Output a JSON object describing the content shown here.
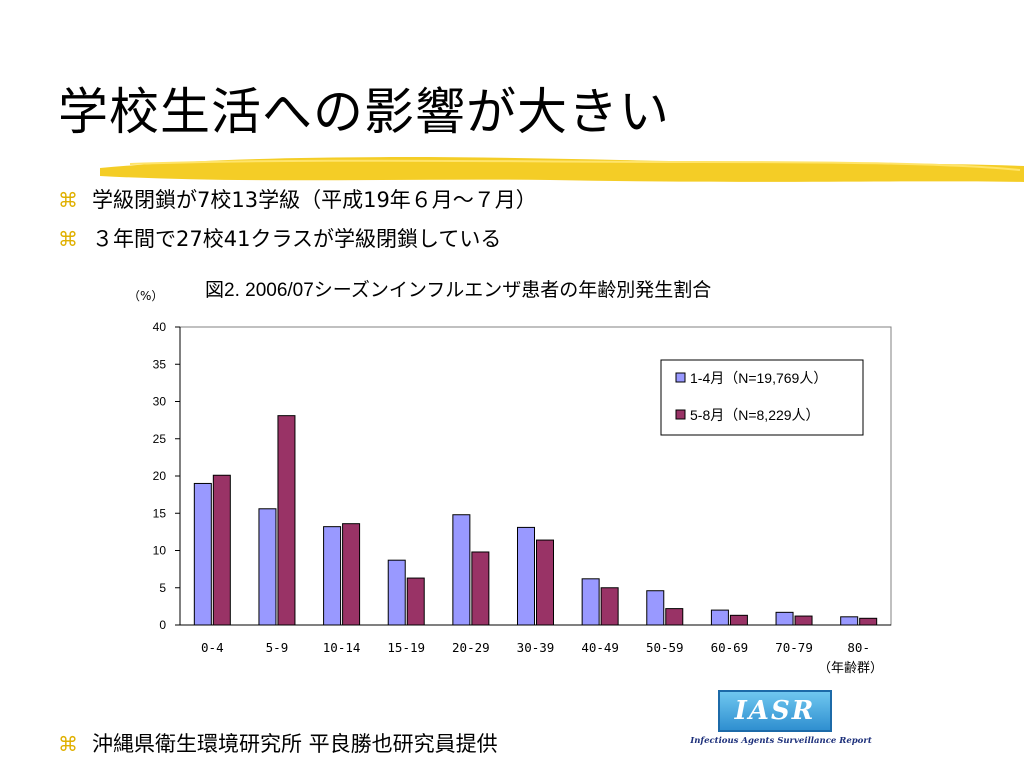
{
  "slide": {
    "title": "学校生活への影響が大きい",
    "bullets": [
      "学級閉鎖が7校13学級（平成19年６月～７月）",
      "３年間で27校41クラスが学級閉鎖している"
    ],
    "credit": "沖縄県衛生環境研究所  平良勝也研究員提供",
    "bullet_symbol": "⌘",
    "highlight_color": "#f2c400"
  },
  "logo": {
    "text": "IASR",
    "subtitle": "Infectious Agents Surveillance Report"
  },
  "chart_data": {
    "type": "bar",
    "title": "図2. 2006/07シーズンインフルエンザ患者の年齢別発生割合",
    "ylabel": "（%）",
    "xlabel": "（年齢群）",
    "ylim": [
      0,
      40
    ],
    "yticks": [
      0,
      5,
      10,
      15,
      20,
      25,
      30,
      35,
      40
    ],
    "grid": false,
    "legend_position": "top-right",
    "categories": [
      "0-4",
      "5-9",
      "10-14",
      "15-19",
      "20-29",
      "30-39",
      "40-49",
      "50-59",
      "60-69",
      "70-79",
      "80-"
    ],
    "series": [
      {
        "name": "1-4月（N=19,769人）",
        "color": "#9999ff",
        "values": [
          19.0,
          15.6,
          13.2,
          8.7,
          14.8,
          13.1,
          6.2,
          4.6,
          2.0,
          1.7,
          1.1
        ]
      },
      {
        "name": "5-8月（N=8,229人）",
        "color": "#993366",
        "values": [
          20.1,
          28.1,
          13.6,
          6.3,
          9.8,
          11.4,
          5.0,
          2.2,
          1.3,
          1.2,
          0.9
        ]
      }
    ]
  }
}
